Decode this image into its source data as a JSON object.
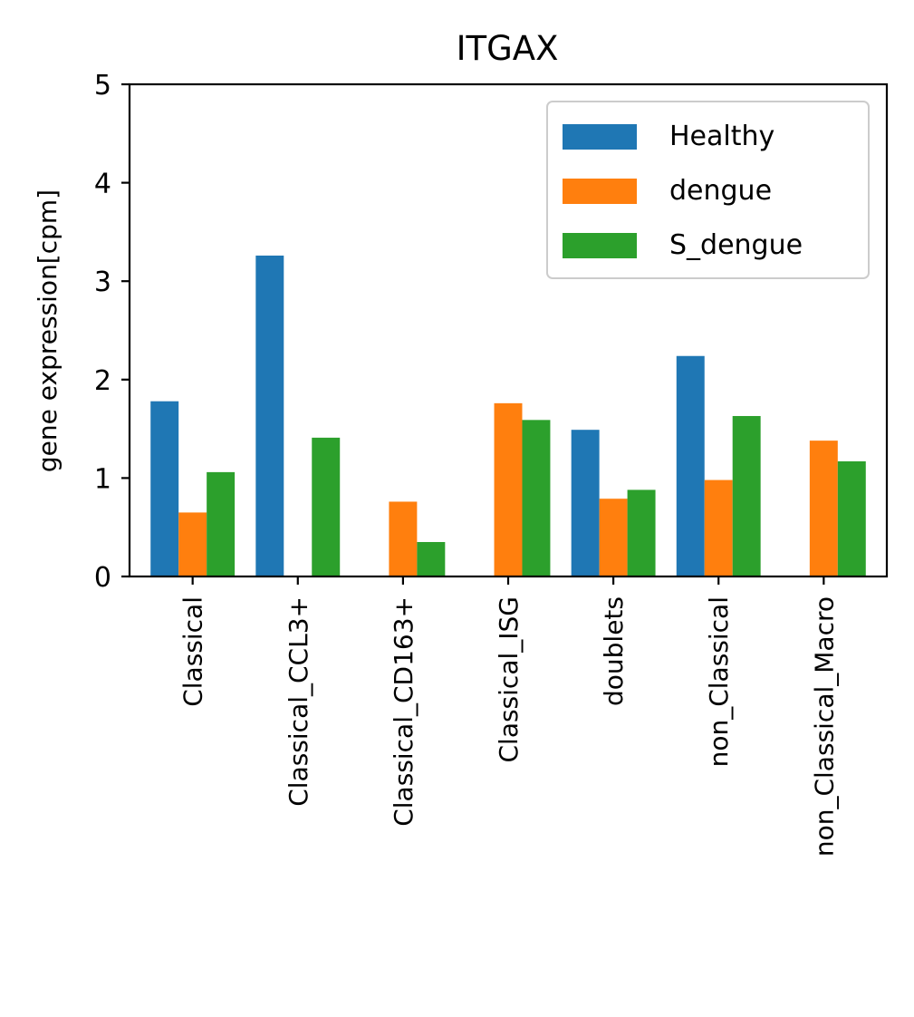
{
  "chart_data": {
    "type": "bar",
    "title": "ITGAX",
    "xlabel": "",
    "ylabel": "gene expression[cpm]",
    "ylim": [
      0,
      5
    ],
    "yticks": [
      0,
      1,
      2,
      3,
      4,
      5
    ],
    "grid": false,
    "legend_position": "top-right",
    "categories": [
      "Classical",
      "Classical_CCL3+",
      "Classical_CD163+",
      "Classical_ISG",
      "doublets",
      "non_Classical",
      "non_Classical_Macro"
    ],
    "series": [
      {
        "name": "Healthy",
        "color": "#1f77b4",
        "values": [
          1.78,
          3.26,
          0,
          0,
          1.49,
          2.24,
          0
        ]
      },
      {
        "name": "dengue",
        "color": "#ff7f0e",
        "values": [
          0.65,
          0,
          0.76,
          1.76,
          0.79,
          0.98,
          1.38
        ]
      },
      {
        "name": "S_dengue",
        "color": "#2ca02c",
        "values": [
          1.06,
          1.41,
          0.35,
          1.59,
          0.88,
          1.63,
          1.17
        ]
      }
    ]
  }
}
